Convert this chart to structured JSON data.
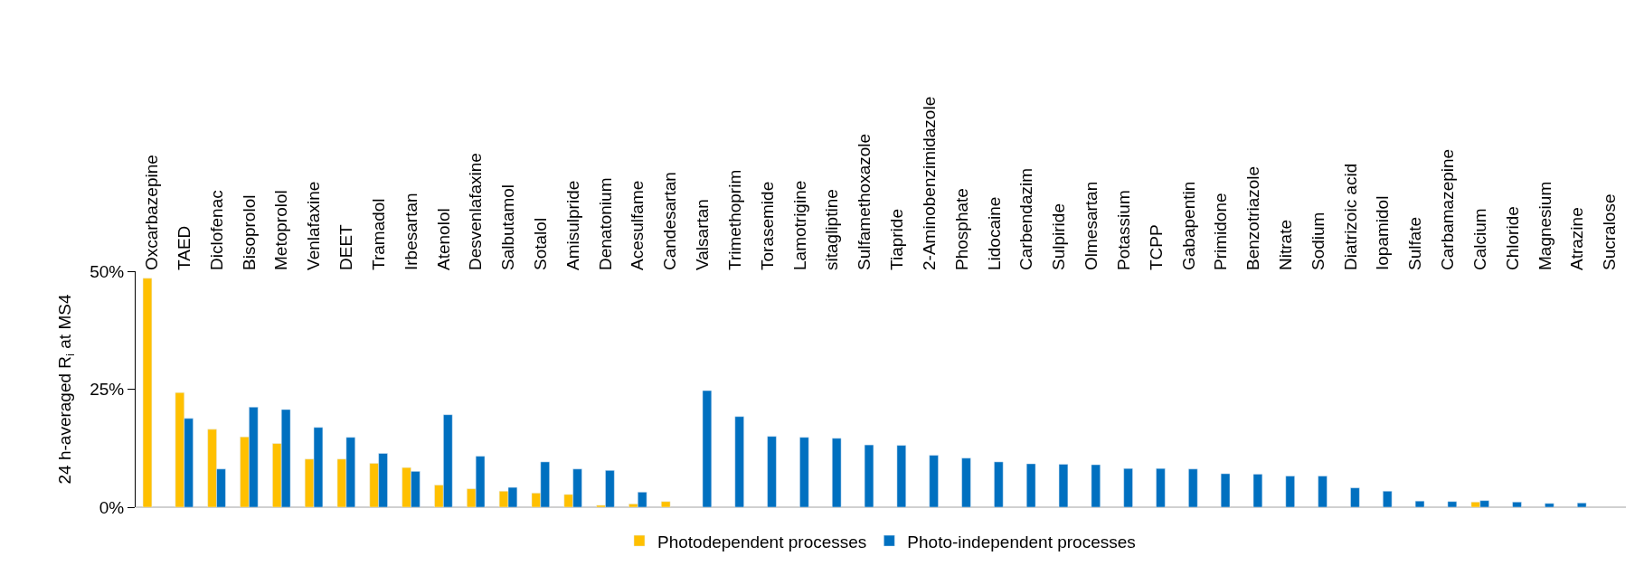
{
  "chart_data": {
    "type": "bar",
    "ylabel": "24 h-averaged R$_{i}$ at MS4",
    "categories": [
      "Oxcarbazepine",
      "TAED",
      "Diclofenac",
      "Bisoprolol",
      "Metoprolol",
      "Venlafaxine",
      "DEET",
      "Tramadol",
      "Irbesartan",
      "Atenolol",
      "Desvenlafaxine",
      "Salbutamol",
      "Sotalol",
      "Amisulpride",
      "Denatonium",
      "Acesulfame",
      "Candesartan",
      "Valsartan",
      "Trimethoprim",
      "Torasemide",
      "Lamotrigine",
      "sitagliptine",
      "Sulfamethoxazole",
      "Tiapride",
      "2-Aminobenzimidazole",
      "Phosphate",
      "Lidocaine",
      "Carbendazim",
      "Sulpiride",
      "Olmesartan",
      "Potassium",
      "TCPP",
      "Gabapentin",
      "Primidone",
      "Benzotriazole",
      "Nitrate",
      "Sodium",
      "Diatrizoic acid",
      "Iopamidol",
      "Sulfate",
      "Carbamazepine",
      "Calcium",
      "Chloride",
      "Magnesium",
      "Atrazine",
      "Sucralose"
    ],
    "series": [
      {
        "name": "Photodependent processes",
        "color": "#ffc000",
        "values": [
          48.5,
          24.3,
          16.5,
          14.9,
          13.5,
          10.2,
          10.2,
          9.3,
          8.4,
          4.7,
          3.9,
          3.4,
          3.0,
          2.7,
          0.4,
          0.7,
          1.2,
          null,
          null,
          null,
          null,
          null,
          null,
          null,
          null,
          null,
          null,
          null,
          null,
          null,
          null,
          null,
          null,
          null,
          null,
          null,
          null,
          null,
          null,
          null,
          null,
          1.1,
          null,
          null,
          null,
          null
        ]
      },
      {
        "name": "Photo-independent processes",
        "color": "#0070c0",
        "values": [
          null,
          18.8,
          8.1,
          21.2,
          20.7,
          16.9,
          14.8,
          11.4,
          7.6,
          19.6,
          10.8,
          4.2,
          9.6,
          8.1,
          7.8,
          3.2,
          null,
          24.7,
          19.2,
          15.0,
          14.8,
          14.6,
          13.2,
          13.1,
          11.0,
          10.4,
          9.6,
          9.2,
          9.1,
          9.0,
          8.2,
          8.2,
          8.1,
          7.1,
          7.0,
          6.6,
          6.6,
          4.1,
          3.4,
          1.3,
          1.2,
          1.4,
          1.1,
          0.8,
          0.9,
          null
        ]
      }
    ],
    "ylim": [
      0,
      50
    ],
    "yticks": [
      {
        "value": 0,
        "label": "0%"
      },
      {
        "value": 25,
        "label": "25%"
      },
      {
        "value": 50,
        "label": "50%"
      }
    ],
    "legend": "bottom"
  }
}
